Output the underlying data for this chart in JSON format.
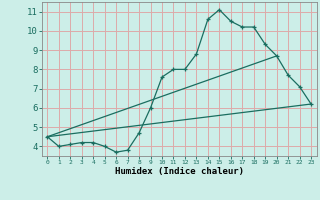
{
  "title": "",
  "xlabel": "Humidex (Indice chaleur)",
  "background_color": "#cceee8",
  "grid_color": "#ddaaaa",
  "line_color": "#1a6e60",
  "xlim": [
    -0.5,
    23.5
  ],
  "ylim": [
    3.5,
    11.5
  ],
  "xticks": [
    0,
    1,
    2,
    3,
    4,
    5,
    6,
    7,
    8,
    9,
    10,
    11,
    12,
    13,
    14,
    15,
    16,
    17,
    18,
    19,
    20,
    21,
    22,
    23
  ],
  "yticks": [
    4,
    5,
    6,
    7,
    8,
    9,
    10,
    11
  ],
  "line1_x": [
    0,
    1,
    2,
    3,
    4,
    5,
    6,
    7,
    8,
    9,
    10,
    11,
    12,
    13,
    14,
    15,
    16,
    17,
    18,
    19,
    20,
    21,
    22,
    23
  ],
  "line1_y": [
    4.5,
    4.0,
    4.1,
    4.2,
    4.2,
    4.0,
    3.7,
    3.8,
    4.7,
    6.0,
    7.6,
    8.0,
    8.0,
    8.8,
    10.6,
    11.1,
    10.5,
    10.2,
    10.2,
    9.3,
    8.7,
    7.7,
    7.1,
    6.2
  ],
  "line2_x": [
    0,
    23
  ],
  "line2_y": [
    4.5,
    6.2
  ],
  "line3_x": [
    0,
    20
  ],
  "line3_y": [
    4.5,
    8.7
  ]
}
